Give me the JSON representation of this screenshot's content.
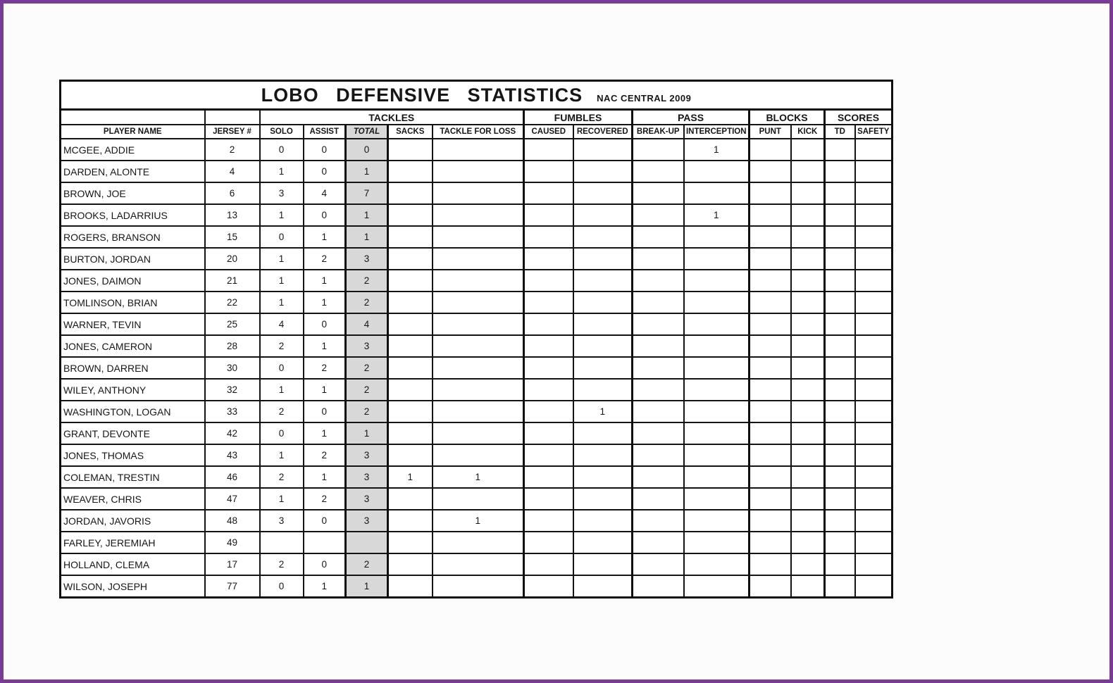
{
  "sheet": {
    "title": "LOBO  DEFENSIVE  STATISTICS",
    "subtitle": "NAC CENTRAL 2009",
    "group_headers": [
      {
        "label": "",
        "span": 1
      },
      {
        "label": "",
        "span": 1
      },
      {
        "label": "TACKLES",
        "span": 5
      },
      {
        "label": "FUMBLES",
        "span": 2
      },
      {
        "label": "PASS",
        "span": 2
      },
      {
        "label": "BLOCKS",
        "span": 2
      },
      {
        "label": "SCORES",
        "span": 2
      }
    ],
    "columns": [
      {
        "key": "name",
        "label": "PLAYER NAME"
      },
      {
        "key": "jersey",
        "label": "JERSEY #"
      },
      {
        "key": "solo",
        "label": "SOLO"
      },
      {
        "key": "assist",
        "label": "ASSIST"
      },
      {
        "key": "total",
        "label": "TOTAL"
      },
      {
        "key": "sacks",
        "label": "SACKS"
      },
      {
        "key": "tfl",
        "label": "TACKLE FOR LOSS"
      },
      {
        "key": "caused",
        "label": "CAUSED"
      },
      {
        "key": "recovered",
        "label": "RECOVERED"
      },
      {
        "key": "breakup",
        "label": "BREAK-UP"
      },
      {
        "key": "interception",
        "label": "INTERCEPTION"
      },
      {
        "key": "punt",
        "label": "PUNT"
      },
      {
        "key": "kick",
        "label": "KICK"
      },
      {
        "key": "td",
        "label": "TD"
      },
      {
        "key": "safety",
        "label": "SAFETY"
      }
    ],
    "rows": [
      {
        "name": "MCGEE, ADDIE",
        "jersey": "2",
        "solo": "0",
        "assist": "0",
        "total": "0",
        "sacks": "",
        "tfl": "",
        "caused": "",
        "recovered": "",
        "breakup": "",
        "interception": "1",
        "punt": "",
        "kick": "",
        "td": "",
        "safety": ""
      },
      {
        "name": "DARDEN, ALONTE",
        "jersey": "4",
        "solo": "1",
        "assist": "0",
        "total": "1",
        "sacks": "",
        "tfl": "",
        "caused": "",
        "recovered": "",
        "breakup": "",
        "interception": "",
        "punt": "",
        "kick": "",
        "td": "",
        "safety": ""
      },
      {
        "name": "BROWN, JOE",
        "jersey": "6",
        "solo": "3",
        "assist": "4",
        "total": "7",
        "sacks": "",
        "tfl": "",
        "caused": "",
        "recovered": "",
        "breakup": "",
        "interception": "",
        "punt": "",
        "kick": "",
        "td": "",
        "safety": ""
      },
      {
        "name": "BROOKS, LADARRIUS",
        "jersey": "13",
        "solo": "1",
        "assist": "0",
        "total": "1",
        "sacks": "",
        "tfl": "",
        "caused": "",
        "recovered": "",
        "breakup": "",
        "interception": "1",
        "punt": "",
        "kick": "",
        "td": "",
        "safety": ""
      },
      {
        "name": "ROGERS, BRANSON",
        "jersey": "15",
        "solo": "0",
        "assist": "1",
        "total": "1",
        "sacks": "",
        "tfl": "",
        "caused": "",
        "recovered": "",
        "breakup": "",
        "interception": "",
        "punt": "",
        "kick": "",
        "td": "",
        "safety": ""
      },
      {
        "name": "BURTON, JORDAN",
        "jersey": "20",
        "solo": "1",
        "assist": "2",
        "total": "3",
        "sacks": "",
        "tfl": "",
        "caused": "",
        "recovered": "",
        "breakup": "",
        "interception": "",
        "punt": "",
        "kick": "",
        "td": "",
        "safety": ""
      },
      {
        "name": "JONES, DAIMON",
        "jersey": "21",
        "solo": "1",
        "assist": "1",
        "total": "2",
        "sacks": "",
        "tfl": "",
        "caused": "",
        "recovered": "",
        "breakup": "",
        "interception": "",
        "punt": "",
        "kick": "",
        "td": "",
        "safety": ""
      },
      {
        "name": "TOMLINSON, BRIAN",
        "jersey": "22",
        "solo": "1",
        "assist": "1",
        "total": "2",
        "sacks": "",
        "tfl": "",
        "caused": "",
        "recovered": "",
        "breakup": "",
        "interception": "",
        "punt": "",
        "kick": "",
        "td": "",
        "safety": ""
      },
      {
        "name": "WARNER, TEVIN",
        "jersey": "25",
        "solo": "4",
        "assist": "0",
        "total": "4",
        "sacks": "",
        "tfl": "",
        "caused": "",
        "recovered": "",
        "breakup": "",
        "interception": "",
        "punt": "",
        "kick": "",
        "td": "",
        "safety": ""
      },
      {
        "name": "JONES, CAMERON",
        "jersey": "28",
        "solo": "2",
        "assist": "1",
        "total": "3",
        "sacks": "",
        "tfl": "",
        "caused": "",
        "recovered": "",
        "breakup": "",
        "interception": "",
        "punt": "",
        "kick": "",
        "td": "",
        "safety": ""
      },
      {
        "name": "BROWN, DARREN",
        "jersey": "30",
        "solo": "0",
        "assist": "2",
        "total": "2",
        "sacks": "",
        "tfl": "",
        "caused": "",
        "recovered": "",
        "breakup": "",
        "interception": "",
        "punt": "",
        "kick": "",
        "td": "",
        "safety": ""
      },
      {
        "name": "WILEY, ANTHONY",
        "jersey": "32",
        "solo": "1",
        "assist": "1",
        "total": "2",
        "sacks": "",
        "tfl": "",
        "caused": "",
        "recovered": "",
        "breakup": "",
        "interception": "",
        "punt": "",
        "kick": "",
        "td": "",
        "safety": ""
      },
      {
        "name": "WASHINGTON, LOGAN",
        "jersey": "33",
        "solo": "2",
        "assist": "0",
        "total": "2",
        "sacks": "",
        "tfl": "",
        "caused": "",
        "recovered": "1",
        "breakup": "",
        "interception": "",
        "punt": "",
        "kick": "",
        "td": "",
        "safety": ""
      },
      {
        "name": "GRANT, DEVONTE",
        "jersey": "42",
        "solo": "0",
        "assist": "1",
        "total": "1",
        "sacks": "",
        "tfl": "",
        "caused": "",
        "recovered": "",
        "breakup": "",
        "interception": "",
        "punt": "",
        "kick": "",
        "td": "",
        "safety": ""
      },
      {
        "name": "JONES, THOMAS",
        "jersey": "43",
        "solo": "1",
        "assist": "2",
        "total": "3",
        "sacks": "",
        "tfl": "",
        "caused": "",
        "recovered": "",
        "breakup": "",
        "interception": "",
        "punt": "",
        "kick": "",
        "td": "",
        "safety": ""
      },
      {
        "name": "COLEMAN, TRESTIN",
        "jersey": "46",
        "solo": "2",
        "assist": "1",
        "total": "3",
        "sacks": "1",
        "tfl": "1",
        "caused": "",
        "recovered": "",
        "breakup": "",
        "interception": "",
        "punt": "",
        "kick": "",
        "td": "",
        "safety": ""
      },
      {
        "name": "WEAVER, CHRIS",
        "jersey": "47",
        "solo": "1",
        "assist": "2",
        "total": "3",
        "sacks": "",
        "tfl": "",
        "caused": "",
        "recovered": "",
        "breakup": "",
        "interception": "",
        "punt": "",
        "kick": "",
        "td": "",
        "safety": ""
      },
      {
        "name": "JORDAN, JAVORIS",
        "jersey": "48",
        "solo": "3",
        "assist": "0",
        "total": "3",
        "sacks": "",
        "tfl": "1",
        "caused": "",
        "recovered": "",
        "breakup": "",
        "interception": "",
        "punt": "",
        "kick": "",
        "td": "",
        "safety": ""
      },
      {
        "name": "FARLEY, JEREMIAH",
        "jersey": "49",
        "solo": "",
        "assist": "",
        "total": "",
        "sacks": "",
        "tfl": "",
        "caused": "",
        "recovered": "",
        "breakup": "",
        "interception": "",
        "punt": "",
        "kick": "",
        "td": "",
        "safety": ""
      },
      {
        "name": "HOLLAND, CLEMA",
        "jersey": "17",
        "solo": "2",
        "assist": "0",
        "total": "2",
        "sacks": "",
        "tfl": "",
        "caused": "",
        "recovered": "",
        "breakup": "",
        "interception": "",
        "punt": "",
        "kick": "",
        "td": "",
        "safety": ""
      },
      {
        "name": "WILSON, JOSEPH",
        "jersey": "77",
        "solo": "0",
        "assist": "1",
        "total": "1",
        "sacks": "",
        "tfl": "",
        "caused": "",
        "recovered": "",
        "breakup": "",
        "interception": "",
        "punt": "",
        "kick": "",
        "td": "",
        "safety": ""
      }
    ]
  }
}
